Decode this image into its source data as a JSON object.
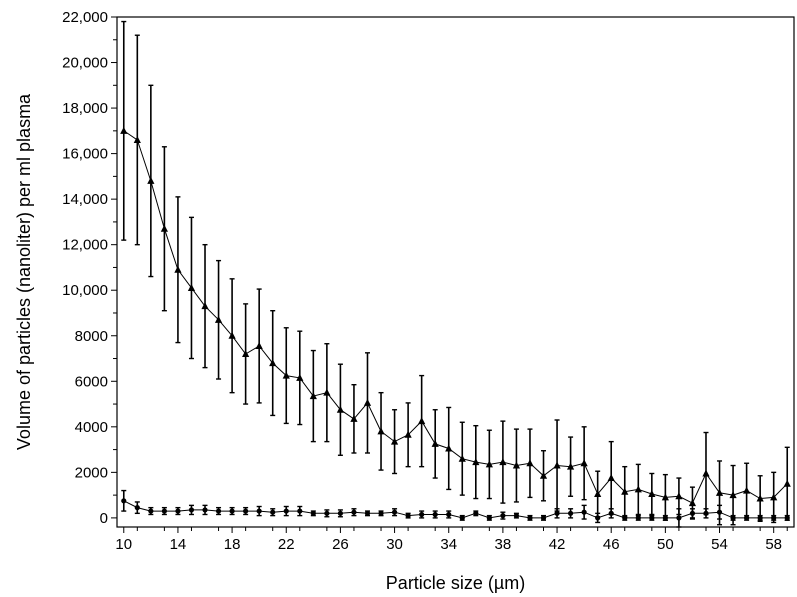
{
  "chart_data": {
    "type": "line",
    "title": "",
    "xlabel": "Particle size (µm)",
    "ylabel": "Volume of particles (nanoliter) per ml plasma",
    "xlim": [
      9.5,
      59.5
    ],
    "ylim": [
      -400,
      22000
    ],
    "x_ticks": [
      10,
      14,
      18,
      22,
      26,
      30,
      34,
      38,
      42,
      46,
      50,
      54,
      58
    ],
    "x_tick_labels": [
      "10",
      "14",
      "18",
      "22",
      "26",
      "30",
      "34",
      "38",
      "42",
      "46",
      "50",
      "54",
      "58"
    ],
    "y_ticks": [
      0,
      2000,
      4000,
      6000,
      8000,
      10000,
      12000,
      14000,
      16000,
      18000,
      20000,
      22000
    ],
    "y_tick_labels": [
      "0",
      "2000",
      "4000",
      "6000",
      "8000",
      "10,000",
      "12,000",
      "14,000",
      "16,000",
      "18,000",
      "20,000",
      "22,000"
    ],
    "grid": false,
    "legend": "none",
    "x": [
      10,
      11,
      12,
      13,
      14,
      15,
      16,
      17,
      18,
      19,
      20,
      21,
      22,
      23,
      24,
      25,
      26,
      27,
      28,
      29,
      30,
      31,
      32,
      33,
      34,
      35,
      36,
      37,
      38,
      39,
      40,
      41,
      42,
      43,
      44,
      45,
      46,
      47,
      48,
      49,
      50,
      51,
      52,
      53,
      54,
      55,
      56,
      57,
      58,
      59
    ],
    "series": [
      {
        "marker": "triangle",
        "values": [
          17000,
          16600,
          14800,
          12700,
          10900,
          10100,
          9300,
          8700,
          8000,
          7200,
          7550,
          6800,
          6250,
          6150,
          5350,
          5500,
          4750,
          4350,
          5050,
          3800,
          3350,
          3650,
          4250,
          3250,
          3050,
          2600,
          2450,
          2350,
          2450,
          2300,
          2400,
          1850,
          2300,
          2250,
          2400,
          1050,
          1750,
          1150,
          1250,
          1050,
          900,
          950,
          650,
          1950,
          1100,
          1000,
          1200,
          850,
          900,
          1500
        ],
        "errors": [
          4800,
          4600,
          4200,
          3600,
          3200,
          3100,
          2700,
          2600,
          2500,
          2200,
          2500,
          2300,
          2100,
          2050,
          2000,
          2150,
          2000,
          1500,
          2200,
          1700,
          1400,
          1400,
          2000,
          1500,
          1800,
          1600,
          1600,
          1500,
          1800,
          1600,
          1500,
          1100,
          2000,
          1300,
          1600,
          1000,
          1600,
          1100,
          1100,
          900,
          1000,
          800,
          700,
          1800,
          1400,
          1300,
          1200,
          1000,
          1100,
          1600
        ]
      },
      {
        "marker": "circle",
        "values": [
          750,
          450,
          300,
          300,
          300,
          350,
          350,
          300,
          300,
          300,
          300,
          250,
          300,
          300,
          200,
          200,
          200,
          250,
          200,
          200,
          250,
          100,
          150,
          150,
          150,
          0,
          200,
          0,
          100,
          100,
          0,
          0,
          200,
          200,
          250,
          0,
          200,
          0,
          0,
          0,
          0,
          0,
          200,
          200,
          250,
          0,
          0,
          0,
          0,
          0
        ],
        "errors": [
          450,
          250,
          150,
          150,
          150,
          200,
          200,
          150,
          150,
          150,
          200,
          150,
          200,
          200,
          100,
          150,
          150,
          150,
          100,
          100,
          150,
          100,
          150,
          150,
          150,
          100,
          100,
          100,
          150,
          100,
          100,
          100,
          200,
          200,
          300,
          200,
          200,
          100,
          100,
          100,
          100,
          400,
          200,
          200,
          300,
          100,
          100,
          100,
          100,
          100
        ]
      }
    ]
  }
}
